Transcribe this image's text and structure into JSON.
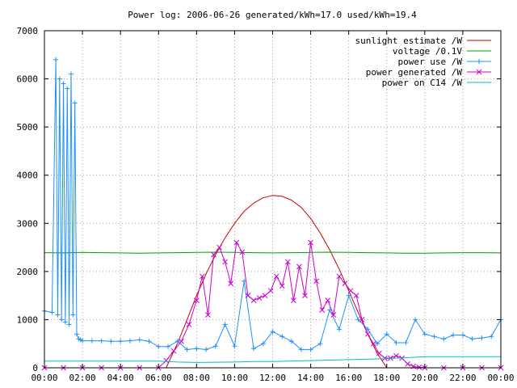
{
  "chart_data": {
    "type": "line",
    "title": "Power log: 2006-06-26 generated/kWh=17.0 used/kWh=19.4",
    "xlabel": "",
    "ylabel": "",
    "xlim": [
      0,
      24
    ],
    "ylim": [
      0,
      7000
    ],
    "grid": true,
    "legend_position": "top-right",
    "x_ticks": [
      "00:00",
      "02:00",
      "04:00",
      "06:00",
      "08:00",
      "10:00",
      "12:00",
      "14:00",
      "16:00",
      "18:00",
      "20:00",
      "22:00",
      "00:00"
    ],
    "y_ticks": [
      "0",
      "1000",
      "2000",
      "3000",
      "4000",
      "5000",
      "6000",
      "7000"
    ],
    "series": [
      {
        "name": "sunlight estimate /W",
        "color": "#cc0000",
        "marker": "none",
        "x": [
          6.4,
          7.0,
          7.5,
          8.0,
          8.5,
          9.0,
          9.5,
          10.0,
          10.5,
          11.0,
          11.5,
          12.0,
          12.5,
          13.0,
          13.5,
          14.0,
          14.5,
          15.0,
          15.5,
          16.0,
          16.5,
          17.0,
          17.5,
          18.0
        ],
        "y": [
          0,
          510,
          1000,
          1500,
          1950,
          2350,
          2700,
          3000,
          3250,
          3420,
          3530,
          3580,
          3560,
          3480,
          3330,
          3100,
          2800,
          2450,
          2050,
          1600,
          1150,
          700,
          300,
          0
        ]
      },
      {
        "name": "voltage /0.1V",
        "color": "#00a000",
        "marker": "none",
        "x": [
          0,
          1,
          2,
          3,
          4,
          5,
          6,
          7,
          8,
          9,
          10,
          11,
          12,
          13,
          14,
          15,
          16,
          17,
          18,
          19,
          20,
          21,
          22,
          23,
          24
        ],
        "y": [
          2390,
          2385,
          2395,
          2390,
          2385,
          2380,
          2385,
          2390,
          2395,
          2400,
          2395,
          2390,
          2385,
          2390,
          2395,
          2400,
          2395,
          2390,
          2385,
          2380,
          2380,
          2385,
          2390,
          2390,
          2385
        ]
      },
      {
        "name": "power use /W",
        "color": "#1e90ff",
        "marker": "plus",
        "x": [
          0.0,
          0.4,
          0.6,
          0.7,
          0.8,
          0.9,
          1.0,
          1.1,
          1.2,
          1.3,
          1.4,
          1.5,
          1.6,
          1.7,
          1.8,
          1.9,
          2.0,
          2.5,
          3.0,
          3.5,
          4.0,
          4.5,
          5.0,
          5.5,
          6.0,
          6.5,
          7.0,
          7.5,
          8.0,
          8.5,
          9.0,
          9.5,
          10.0,
          10.5,
          11.0,
          11.5,
          12.0,
          12.5,
          13.0,
          13.5,
          14.0,
          14.5,
          15.0,
          15.5,
          16.0,
          16.5,
          17.0,
          17.5,
          18.0,
          18.5,
          19.0,
          19.5,
          20.0,
          20.5,
          21.0,
          21.5,
          22.0,
          22.5,
          23.0,
          23.5,
          24.0
        ],
        "y": [
          1180,
          1150,
          6400,
          1100,
          6000,
          1000,
          5900,
          950,
          5800,
          900,
          6100,
          1100,
          5500,
          700,
          600,
          580,
          560,
          560,
          560,
          550,
          550,
          560,
          580,
          550,
          440,
          440,
          550,
          380,
          400,
          380,
          450,
          900,
          450,
          1800,
          400,
          500,
          750,
          650,
          550,
          380,
          380,
          500,
          1200,
          800,
          1500,
          1000,
          800,
          500,
          700,
          520,
          520,
          1000,
          700,
          650,
          600,
          680,
          680,
          600,
          620,
          650,
          1000
        ]
      },
      {
        "name": "power generated /W",
        "color": "#cc00cc",
        "marker": "x",
        "x": [
          0.0,
          1.0,
          2.0,
          3.0,
          4.0,
          5.0,
          6.0,
          6.4,
          6.8,
          7.2,
          7.6,
          8.0,
          8.3,
          8.6,
          8.9,
          9.2,
          9.5,
          9.8,
          10.1,
          10.4,
          10.7,
          11.0,
          11.3,
          11.6,
          11.9,
          12.2,
          12.5,
          12.8,
          13.1,
          13.4,
          13.7,
          14.0,
          14.3,
          14.6,
          14.9,
          15.2,
          15.5,
          15.8,
          16.1,
          16.4,
          16.7,
          17.0,
          17.3,
          17.6,
          17.9,
          18.2,
          18.5,
          18.8,
          19.1,
          19.4,
          19.7,
          20.0,
          21.0,
          22.0,
          23.0,
          24.0
        ],
        "y": [
          0,
          0,
          0,
          0,
          0,
          0,
          0,
          150,
          350,
          550,
          900,
          1400,
          1900,
          1100,
          2350,
          2500,
          2200,
          1750,
          2600,
          2400,
          1500,
          1400,
          1450,
          1500,
          1600,
          1900,
          1700,
          2200,
          1400,
          2100,
          1500,
          2600,
          1800,
          1200,
          1400,
          1100,
          1900,
          1750,
          1600,
          1500,
          1000,
          700,
          500,
          300,
          200,
          200,
          250,
          200,
          80,
          30,
          10,
          0,
          0,
          0,
          0,
          0
        ]
      },
      {
        "name": "power on C14 /W",
        "color": "#00c0c0",
        "marker": "none",
        "x": [
          0,
          2,
          4,
          6,
          7,
          8,
          10,
          11,
          12,
          14,
          16,
          18,
          20,
          22,
          24
        ],
        "y": [
          140,
          140,
          140,
          140,
          120,
          110,
          120,
          130,
          130,
          150,
          170,
          190,
          230,
          230,
          230
        ]
      }
    ]
  }
}
